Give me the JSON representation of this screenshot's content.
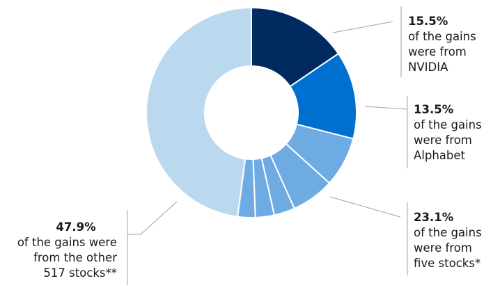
{
  "chart_data": {
    "type": "pie",
    "donut": true,
    "slices": [
      {
        "group": "NVIDIA",
        "value": 15.5,
        "color": "#002a60"
      },
      {
        "group": "Alphabet",
        "value": 13.5,
        "color": "#0070d0"
      },
      {
        "group": "five stocks",
        "value": 7.7,
        "color": "#6eabe3"
      },
      {
        "group": "five stocks",
        "value": 6.6,
        "color": "#6eabe3"
      },
      {
        "group": "five stocks",
        "value": 3.2,
        "color": "#6eabe3"
      },
      {
        "group": "five stocks",
        "value": 2.9,
        "color": "#6eabe3"
      },
      {
        "group": "five stocks",
        "value": 2.7,
        "color": "#6eabe3"
      },
      {
        "group": "other",
        "value": 47.9,
        "color": "#bad9ee"
      }
    ],
    "annotations": [
      {
        "value": "15.5%",
        "lines": [
          "of the gains",
          "were from",
          "NVIDIA"
        ]
      },
      {
        "value": "13.5%",
        "lines": [
          "of the gains",
          "were from",
          "Alphabet"
        ]
      },
      {
        "value": "23.1%",
        "lines": [
          "of the gains",
          "were from",
          "five stocks*"
        ]
      },
      {
        "value": "47.9%",
        "lines": [
          "of the gains were",
          "from the other",
          "517 stocks**"
        ]
      }
    ]
  }
}
